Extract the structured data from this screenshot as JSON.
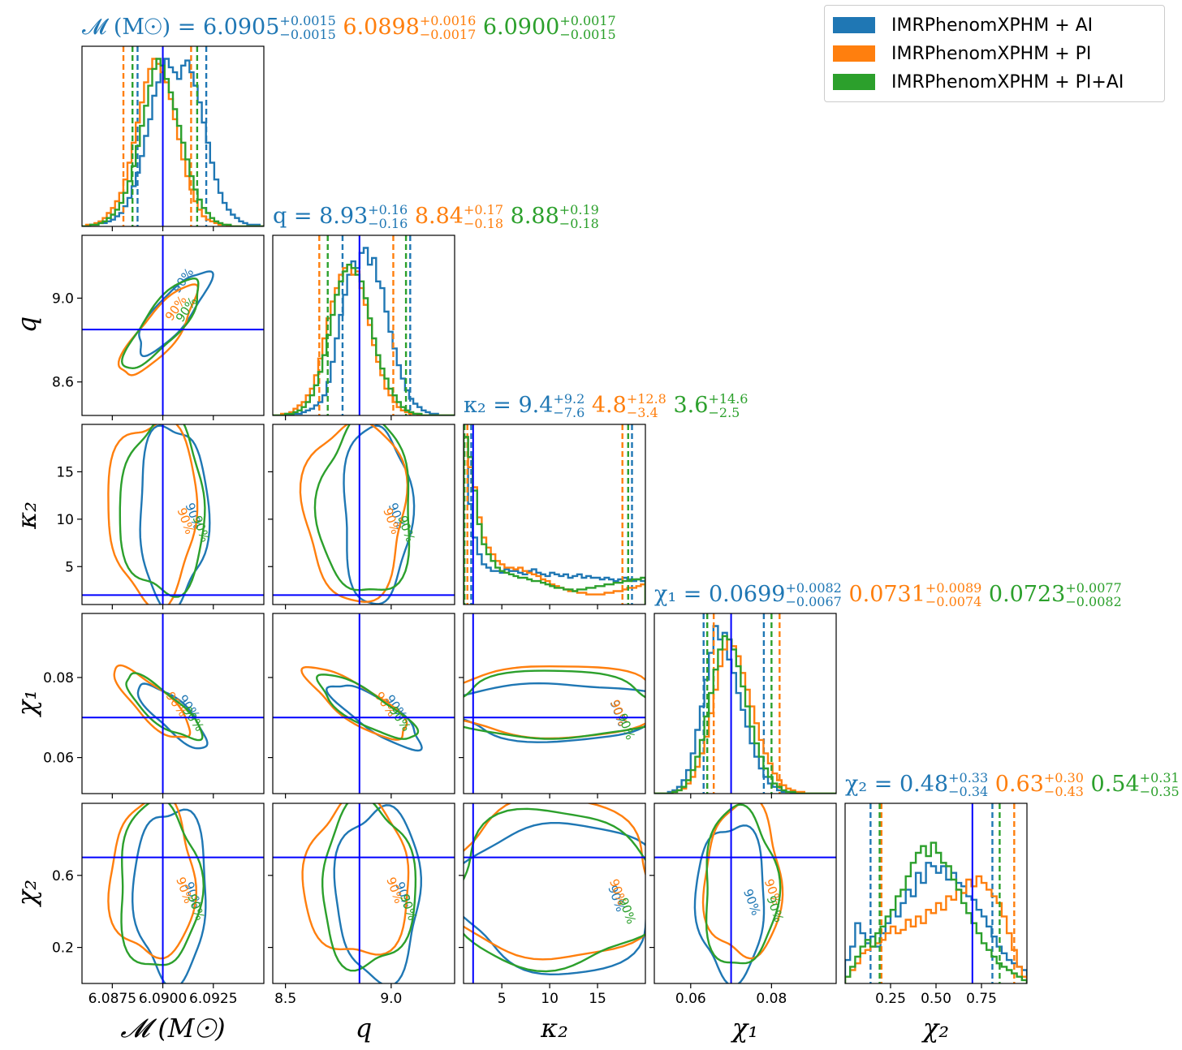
{
  "colors": {
    "AI": "#1f77b4",
    "PI": "#ff7f0e",
    "PIAI": "#2ca02c",
    "truth": "#0000ff"
  },
  "legend": [
    {
      "label": "IMRPhenomXPHM + AI",
      "color": "#1f77b4"
    },
    {
      "label": "IMRPhenomXPHM + PI",
      "color": "#ff7f0e"
    },
    {
      "label": "IMRPhenomXPHM + PI+AI",
      "color": "#2ca02c"
    }
  ],
  "chart_data": {
    "type": "corner",
    "contour_label": "90%",
    "parameters": [
      {
        "key": "Mc",
        "axis_label": "𝓜 (M☉)",
        "title_symbol": "𝓜 (M☉) =",
        "range": [
          6.086,
          6.095
        ],
        "ticks": [
          6.0875,
          6.09,
          6.0925
        ],
        "tick_labels": [
          "6.0875",
          "6.0900",
          "6.0925"
        ],
        "truth": 6.09,
        "summary": [
          {
            "median": "6.0905",
            "plus": "+0.0015",
            "minus": "−0.0015"
          },
          {
            "median": "6.0898",
            "plus": "+0.0016",
            "minus": "−0.0017"
          },
          {
            "median": "6.0900",
            "plus": "+0.0017",
            "minus": "−0.0015"
          }
        ]
      },
      {
        "key": "q",
        "axis_label": "q",
        "title_symbol": "q =",
        "range": [
          8.44,
          9.3
        ],
        "ticks": [
          8.5,
          9.0
        ],
        "tick_labels": [
          "8.5",
          "9.0"
        ],
        "y_ticks": [
          8.6,
          9.0
        ],
        "y_tick_labels": [
          "8.6",
          "9.0"
        ],
        "truth": 8.85,
        "summary": [
          {
            "median": "8.93",
            "plus": "+0.16",
            "minus": "−0.16"
          },
          {
            "median": "8.84",
            "plus": "+0.17",
            "minus": "−0.18"
          },
          {
            "median": "8.88",
            "plus": "+0.19",
            "minus": "−0.18"
          }
        ]
      },
      {
        "key": "kappa2",
        "axis_label": "κ₂",
        "title_symbol": "κ₂ =",
        "range": [
          1.0,
          20.0
        ],
        "ticks": [
          5,
          10,
          15
        ],
        "tick_labels": [
          "5",
          "10",
          "15"
        ],
        "truth": 2.0,
        "summary": [
          {
            "median": "9.4",
            "plus": "+9.2",
            "minus": "−7.6"
          },
          {
            "median": "4.8",
            "plus": "+12.8",
            "minus": "−3.4"
          },
          {
            "median": "3.6",
            "plus": "+14.6",
            "minus": "−2.5"
          }
        ]
      },
      {
        "key": "chi1",
        "axis_label": "χ₁",
        "title_symbol": "χ₁ =",
        "range": [
          0.051,
          0.096
        ],
        "ticks": [
          0.06,
          0.08
        ],
        "tick_labels": [
          "0.06",
          "0.08"
        ],
        "truth": 0.07,
        "summary": [
          {
            "median": "0.0699",
            "plus": "+0.0082",
            "minus": "−0.0067"
          },
          {
            "median": "0.0731",
            "plus": "+0.0089",
            "minus": "−0.0074"
          },
          {
            "median": "0.0723",
            "plus": "+0.0077",
            "minus": "−0.0082"
          }
        ]
      },
      {
        "key": "chi2",
        "axis_label": "χ₂",
        "title_symbol": "χ₂ =",
        "range": [
          0.0,
          1.0
        ],
        "ticks": [
          0.25,
          0.5,
          0.75
        ],
        "tick_labels": [
          "0.25",
          "0.50",
          "0.75"
        ],
        "y_ticks": [
          0.2,
          0.6
        ],
        "y_tick_labels": [
          "0.2",
          "0.6"
        ],
        "truth": 0.7,
        "summary": [
          {
            "median": "0.48",
            "plus": "+0.33",
            "minus": "−0.34"
          },
          {
            "median": "0.63",
            "plus": "+0.30",
            "minus": "−0.43"
          },
          {
            "median": "0.54",
            "plus": "+0.31",
            "minus": "−0.35"
          }
        ]
      }
    ],
    "series": [
      {
        "name": "IMRPhenomXPHM + AI",
        "color": "#1f77b4"
      },
      {
        "name": "IMRPhenomXPHM + PI",
        "color": "#ff7f0e"
      },
      {
        "name": "IMRPhenomXPHM + PI+AI",
        "color": "#2ca02c"
      }
    ],
    "quantiles_90": [
      [
        [
          6.08875,
          6.09215
        ],
        [
          6.08805,
          6.0914
        ],
        [
          6.0885,
          6.0917
        ]
      ],
      [
        [
          8.77,
          9.09
        ],
        [
          8.66,
          9.01
        ],
        [
          8.7,
          9.07
        ]
      ],
      [
        [
          1.8,
          18.6
        ],
        [
          1.4,
          17.6
        ],
        [
          1.1,
          18.2
        ]
      ],
      [
        [
          0.0632,
          0.0781
        ],
        [
          0.0657,
          0.082
        ],
        [
          0.0641,
          0.08
        ]
      ],
      [
        [
          0.14,
          0.81
        ],
        [
          0.2,
          0.93
        ],
        [
          0.19,
          0.85
        ]
      ]
    ],
    "histograms": [
      {
        "bins": [
          6.086,
          6.095
        ],
        "counts": [
          [
            0,
            0,
            1,
            1,
            2,
            2,
            3,
            4,
            6,
            8,
            12,
            17,
            24,
            32,
            42,
            54,
            64,
            78,
            86,
            96,
            100,
            95,
            92,
            88,
            96,
            99,
            92,
            84,
            74,
            62,
            50,
            38,
            28,
            20,
            14,
            10,
            7,
            5,
            3,
            2,
            1,
            1,
            1,
            0
          ],
          [
            0,
            1,
            1,
            2,
            3,
            5,
            8,
            11,
            15,
            20,
            28,
            38,
            50,
            62,
            74,
            86,
            94,
            100,
            97,
            92,
            86,
            76,
            64,
            52,
            40,
            30,
            22,
            15,
            10,
            6,
            4,
            3,
            2,
            1,
            1,
            0,
            0,
            0,
            0,
            0,
            0,
            0,
            0,
            0
          ],
          [
            0,
            0,
            1,
            1,
            2,
            3,
            5,
            7,
            10,
            14,
            20,
            27,
            36,
            48,
            60,
            72,
            84,
            94,
            100,
            96,
            88,
            80,
            70,
            60,
            50,
            40,
            30,
            22,
            16,
            11,
            8,
            5,
            3,
            2,
            1,
            1,
            0,
            0,
            0,
            0,
            0,
            0,
            0,
            0
          ]
        ]
      },
      {
        "bins": [
          8.44,
          9.3
        ],
        "counts": [
          [
            0,
            0,
            0,
            0,
            0,
            1,
            1,
            2,
            3,
            4,
            6,
            8,
            12,
            20,
            32,
            46,
            60,
            72,
            84,
            92,
            88,
            97,
            100,
            90,
            94,
            80,
            76,
            62,
            50,
            40,
            30,
            22,
            15,
            10,
            7,
            5,
            3,
            2,
            1,
            1,
            0,
            0,
            0,
            0
          ],
          [
            0,
            0,
            1,
            1,
            2,
            4,
            6,
            8,
            12,
            16,
            24,
            34,
            46,
            58,
            68,
            76,
            84,
            88,
            90,
            84,
            86,
            76,
            66,
            54,
            42,
            32,
            24,
            16,
            12,
            8,
            5,
            3,
            2,
            1,
            1,
            0,
            0,
            0,
            0,
            0,
            0,
            0,
            0,
            0
          ],
          [
            0,
            0,
            0,
            1,
            1,
            2,
            3,
            5,
            8,
            12,
            18,
            26,
            36,
            48,
            60,
            72,
            80,
            86,
            90,
            88,
            84,
            80,
            70,
            58,
            46,
            36,
            28,
            22,
            16,
            12,
            8,
            5,
            3,
            2,
            1,
            1,
            0,
            0,
            0,
            0,
            0,
            0,
            0,
            0
          ]
        ]
      },
      {
        "bins": [
          1.0,
          20.0
        ],
        "counts": [
          [
            100,
            60,
            40,
            30,
            24,
            22,
            20,
            20,
            19,
            21,
            20,
            20,
            19,
            18,
            20,
            21,
            19,
            18,
            17,
            19,
            18,
            17,
            18,
            16,
            17,
            18,
            16,
            17,
            16,
            16,
            15,
            16,
            15,
            14,
            15,
            16,
            15,
            14,
            15,
            14
          ],
          [
            100,
            82,
            70,
            52,
            40,
            34,
            30,
            26,
            24,
            22,
            22,
            21,
            22,
            20,
            19,
            18,
            17,
            15,
            14,
            12,
            11,
            10,
            9,
            8,
            8,
            7,
            7,
            6,
            6,
            6,
            6,
            7,
            7,
            8,
            8,
            9,
            10,
            10,
            11,
            12
          ],
          [
            100,
            88,
            68,
            48,
            36,
            30,
            26,
            22,
            20,
            19,
            18,
            17,
            16,
            16,
            15,
            14,
            14,
            13,
            12,
            11,
            10,
            10,
            9,
            9,
            8,
            9,
            9,
            10,
            10,
            11,
            11,
            12,
            12,
            13,
            13,
            14,
            14,
            15,
            15,
            16
          ]
        ]
      },
      {
        "bins": [
          0.051,
          0.096
        ],
        "counts": [
          [
            0,
            0,
            0,
            1,
            2,
            4,
            8,
            14,
            24,
            38,
            52,
            68,
            84,
            100,
            92,
            96,
            80,
            72,
            60,
            50,
            40,
            30,
            22,
            15,
            10,
            6,
            4,
            2,
            1,
            1,
            0,
            0,
            0,
            0,
            0,
            0,
            0,
            0,
            0,
            0
          ],
          [
            0,
            0,
            0,
            0,
            1,
            2,
            3,
            6,
            10,
            16,
            24,
            34,
            48,
            62,
            76,
            86,
            92,
            88,
            82,
            72,
            62,
            52,
            42,
            32,
            24,
            18,
            12,
            8,
            5,
            3,
            2,
            1,
            1,
            0,
            0,
            0,
            0,
            0,
            0,
            0
          ],
          [
            0,
            0,
            0,
            0,
            1,
            2,
            4,
            8,
            14,
            22,
            32,
            46,
            60,
            74,
            86,
            94,
            92,
            86,
            76,
            64,
            52,
            40,
            30,
            22,
            15,
            10,
            6,
            4,
            2,
            1,
            1,
            0,
            0,
            0,
            0,
            0,
            0,
            0,
            0,
            0
          ]
        ]
      },
      {
        "bins": [
          0.0,
          1.0
        ],
        "counts": [
          [
            14,
            22,
            36,
            30,
            24,
            28,
            22,
            30,
            36,
            44,
            40,
            48,
            56,
            52,
            66,
            60,
            72,
            70,
            66,
            70,
            62,
            66,
            60,
            58,
            52,
            50,
            44,
            40,
            34,
            28,
            22,
            18,
            14,
            12,
            10,
            8
          ],
          [
            4,
            8,
            12,
            18,
            20,
            22,
            24,
            26,
            30,
            34,
            30,
            32,
            38,
            34,
            40,
            36,
            44,
            42,
            48,
            44,
            52,
            50,
            56,
            54,
            62,
            58,
            64,
            60,
            56,
            52,
            48,
            40,
            30,
            20,
            10,
            4
          ],
          [
            4,
            10,
            16,
            22,
            26,
            22,
            30,
            34,
            40,
            44,
            52,
            56,
            64,
            72,
            78,
            82,
            76,
            84,
            78,
            72,
            70,
            62,
            56,
            48,
            42,
            36,
            30,
            24,
            20,
            16,
            12,
            10,
            8,
            6,
            4,
            2
          ]
        ]
      }
    ]
  }
}
